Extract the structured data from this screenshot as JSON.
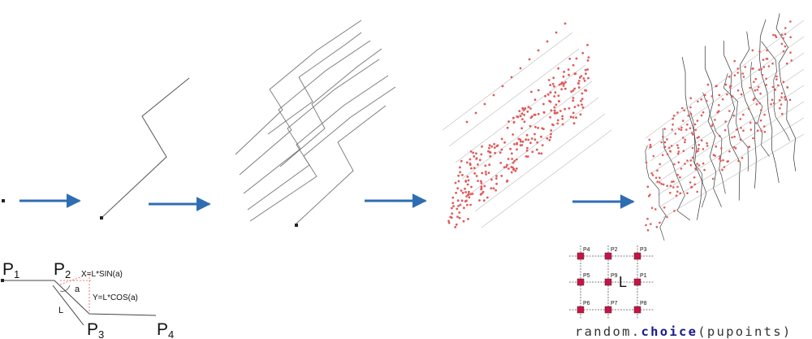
{
  "colors": {
    "arrow": "#2f6db3",
    "line": "#555555",
    "point": "#e05a5a",
    "dashed": "#e05a5a",
    "grid_point": "#cc1144",
    "code_keyword": "#1a1a8c"
  },
  "steps": [
    "start-point",
    "single-zigzag",
    "multiple-zigzags",
    "point-grid",
    "connected-mesh"
  ],
  "geometry_diagram": {
    "labels": {
      "p1": "P",
      "p1_sub": "1",
      "p2": "P",
      "p2_sub": "2",
      "p3": "P",
      "p3_sub": "3",
      "p4": "P",
      "p4_sub": "4",
      "x_formula": "X=L*SIN(a)",
      "y_formula": "Y=L*COS(a)",
      "angle": "a",
      "length": "L"
    }
  },
  "grid_diagram": {
    "center_label": "L",
    "point_labels": [
      "P1",
      "P2",
      "P3",
      "P4",
      "P5",
      "P6",
      "P7",
      "P8",
      "P9"
    ]
  },
  "code": {
    "prefix": "random.",
    "keyword": "choice",
    "suffix": "(pupoints)"
  }
}
